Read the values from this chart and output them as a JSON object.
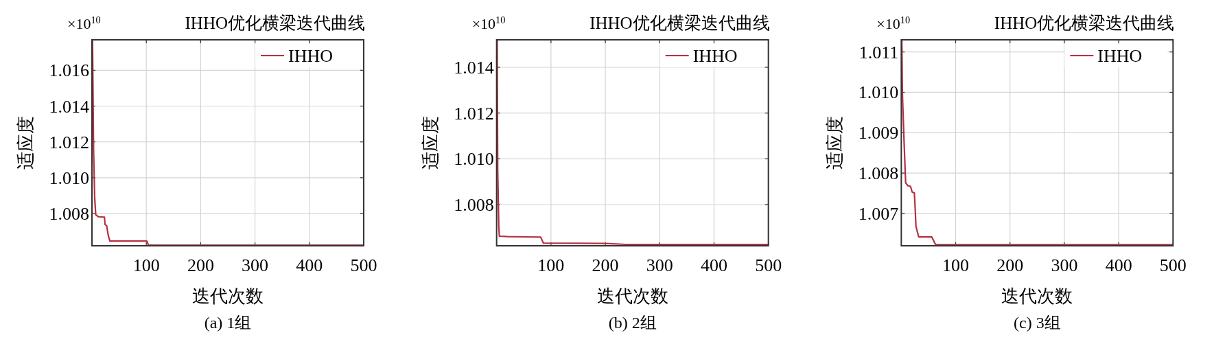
{
  "chart_data": [
    {
      "type": "line",
      "title": "IHHO优化横梁迭代曲线",
      "xlabel": "迭代次数",
      "ylabel": "适应度",
      "annotations": [
        "×10$^{10}$",
        "(a) 1组"
      ],
      "grid": true,
      "legend": "top right",
      "xlim": [
        0,
        500
      ],
      "ylim": [
        1.0062,
        1.0177
      ],
      "xticks": [
        100,
        200,
        300,
        400,
        500
      ],
      "yticks": [
        {
          "value": 1.008,
          "label": "1.008"
        },
        {
          "value": 1.01,
          "label": "1.010"
        },
        {
          "value": 1.012,
          "label": "1.012"
        },
        {
          "value": 1.014,
          "label": "1.014"
        },
        {
          "value": 1.016,
          "label": "1.016"
        }
      ],
      "series": [
        {
          "name": "IHHO",
          "color": "#b5303f",
          "x": [
            1,
            3,
            5,
            7,
            12,
            23,
            24,
            27,
            30,
            33,
            101,
            104,
            500
          ],
          "values": [
            1.0177,
            1.01161,
            1.00888,
            1.00793,
            1.00782,
            1.0078,
            1.00739,
            1.00732,
            1.00678,
            1.00646,
            1.00646,
            1.00623,
            1.00623
          ]
        }
      ]
    },
    {
      "type": "line",
      "title": "IHHO优化横梁迭代曲线",
      "xlabel": "迭代次数",
      "ylabel": "适应度",
      "annotations": [
        "×10$^{10}$",
        "(b) 2组"
      ],
      "grid": true,
      "legend": "top right",
      "xlim": [
        0,
        500
      ],
      "ylim": [
        1.0062,
        1.0152
      ],
      "xticks": [
        100,
        200,
        300,
        400,
        500
      ],
      "yticks": [
        {
          "value": 1.008,
          "label": "1.008"
        },
        {
          "value": 1.01,
          "label": "1.010"
        },
        {
          "value": 1.012,
          "label": "1.012"
        },
        {
          "value": 1.014,
          "label": "1.014"
        }
      ],
      "series": [
        {
          "name": "IHHO",
          "color": "#b5303f",
          "x": [
            1,
            2,
            4,
            5,
            20,
            81,
            86,
            201,
            237,
            500
          ],
          "values": [
            1.0152,
            1.00953,
            1.00707,
            1.00662,
            1.0066,
            1.00658,
            1.00632,
            1.0063,
            1.00626,
            1.00626
          ]
        }
      ]
    },
    {
      "type": "line",
      "title": "IHHO优化横梁迭代曲线",
      "xlabel": "迭代次数",
      "ylabel": "适应度",
      "annotations": [
        "×10$^{10}$",
        "(c) 3组"
      ],
      "grid": true,
      "legend": "top right",
      "xlim": [
        0,
        500
      ],
      "ylim": [
        1.0062,
        1.0113
      ],
      "xticks": [
        100,
        200,
        300,
        400,
        500
      ],
      "yticks": [
        {
          "value": 1.007,
          "label": "1.007"
        },
        {
          "value": 1.008,
          "label": "1.008"
        },
        {
          "value": 1.009,
          "label": "1.009"
        },
        {
          "value": 1.01,
          "label": "1.010"
        },
        {
          "value": 1.011,
          "label": "1.011"
        }
      ],
      "series": [
        {
          "name": "IHHO",
          "color": "#b5303f",
          "x": [
            1,
            2,
            5,
            8,
            12,
            17,
            20,
            24,
            25,
            27,
            32,
            56,
            63,
            500
          ],
          "values": [
            1.0113,
            1.01,
            1.00882,
            1.00776,
            1.00769,
            1.00767,
            1.00753,
            1.00751,
            1.00728,
            1.00668,
            1.00642,
            1.00642,
            1.00623,
            1.00623
          ]
        }
      ]
    }
  ]
}
